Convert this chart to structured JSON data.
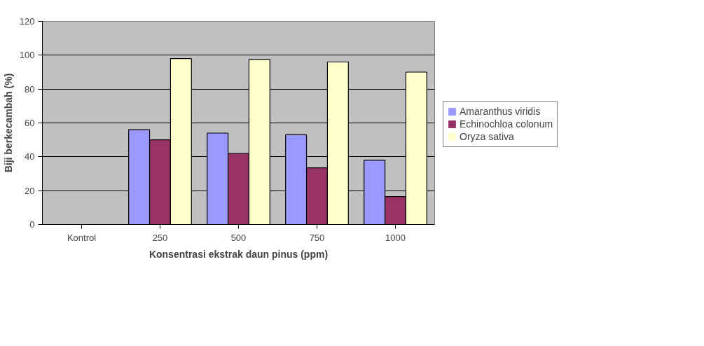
{
  "chart_data": {
    "type": "bar",
    "xlabel": "Konsentrasi ekstrak daun pinus (ppm)",
    "ylabel": "Biji berkecambah (%)",
    "categories": [
      "Kontrol",
      "250",
      "500",
      "750",
      "1000"
    ],
    "series": [
      {
        "name": "Amaranthus viridis",
        "color": "#9999ff",
        "values": [
          0,
          56,
          54,
          53,
          38
        ]
      },
      {
        "name": "Echinochloa colonum",
        "color": "#993366",
        "values": [
          0,
          50,
          42,
          33.5,
          16.5
        ]
      },
      {
        "name": "Oryza sativa",
        "color": "#ffffcc",
        "values": [
          0,
          98,
          97.5,
          96,
          90
        ]
      }
    ],
    "ylim": [
      0,
      120
    ],
    "yticks": [
      0,
      20,
      40,
      60,
      80,
      100,
      120
    ],
    "grid": "y",
    "legend": "right"
  }
}
